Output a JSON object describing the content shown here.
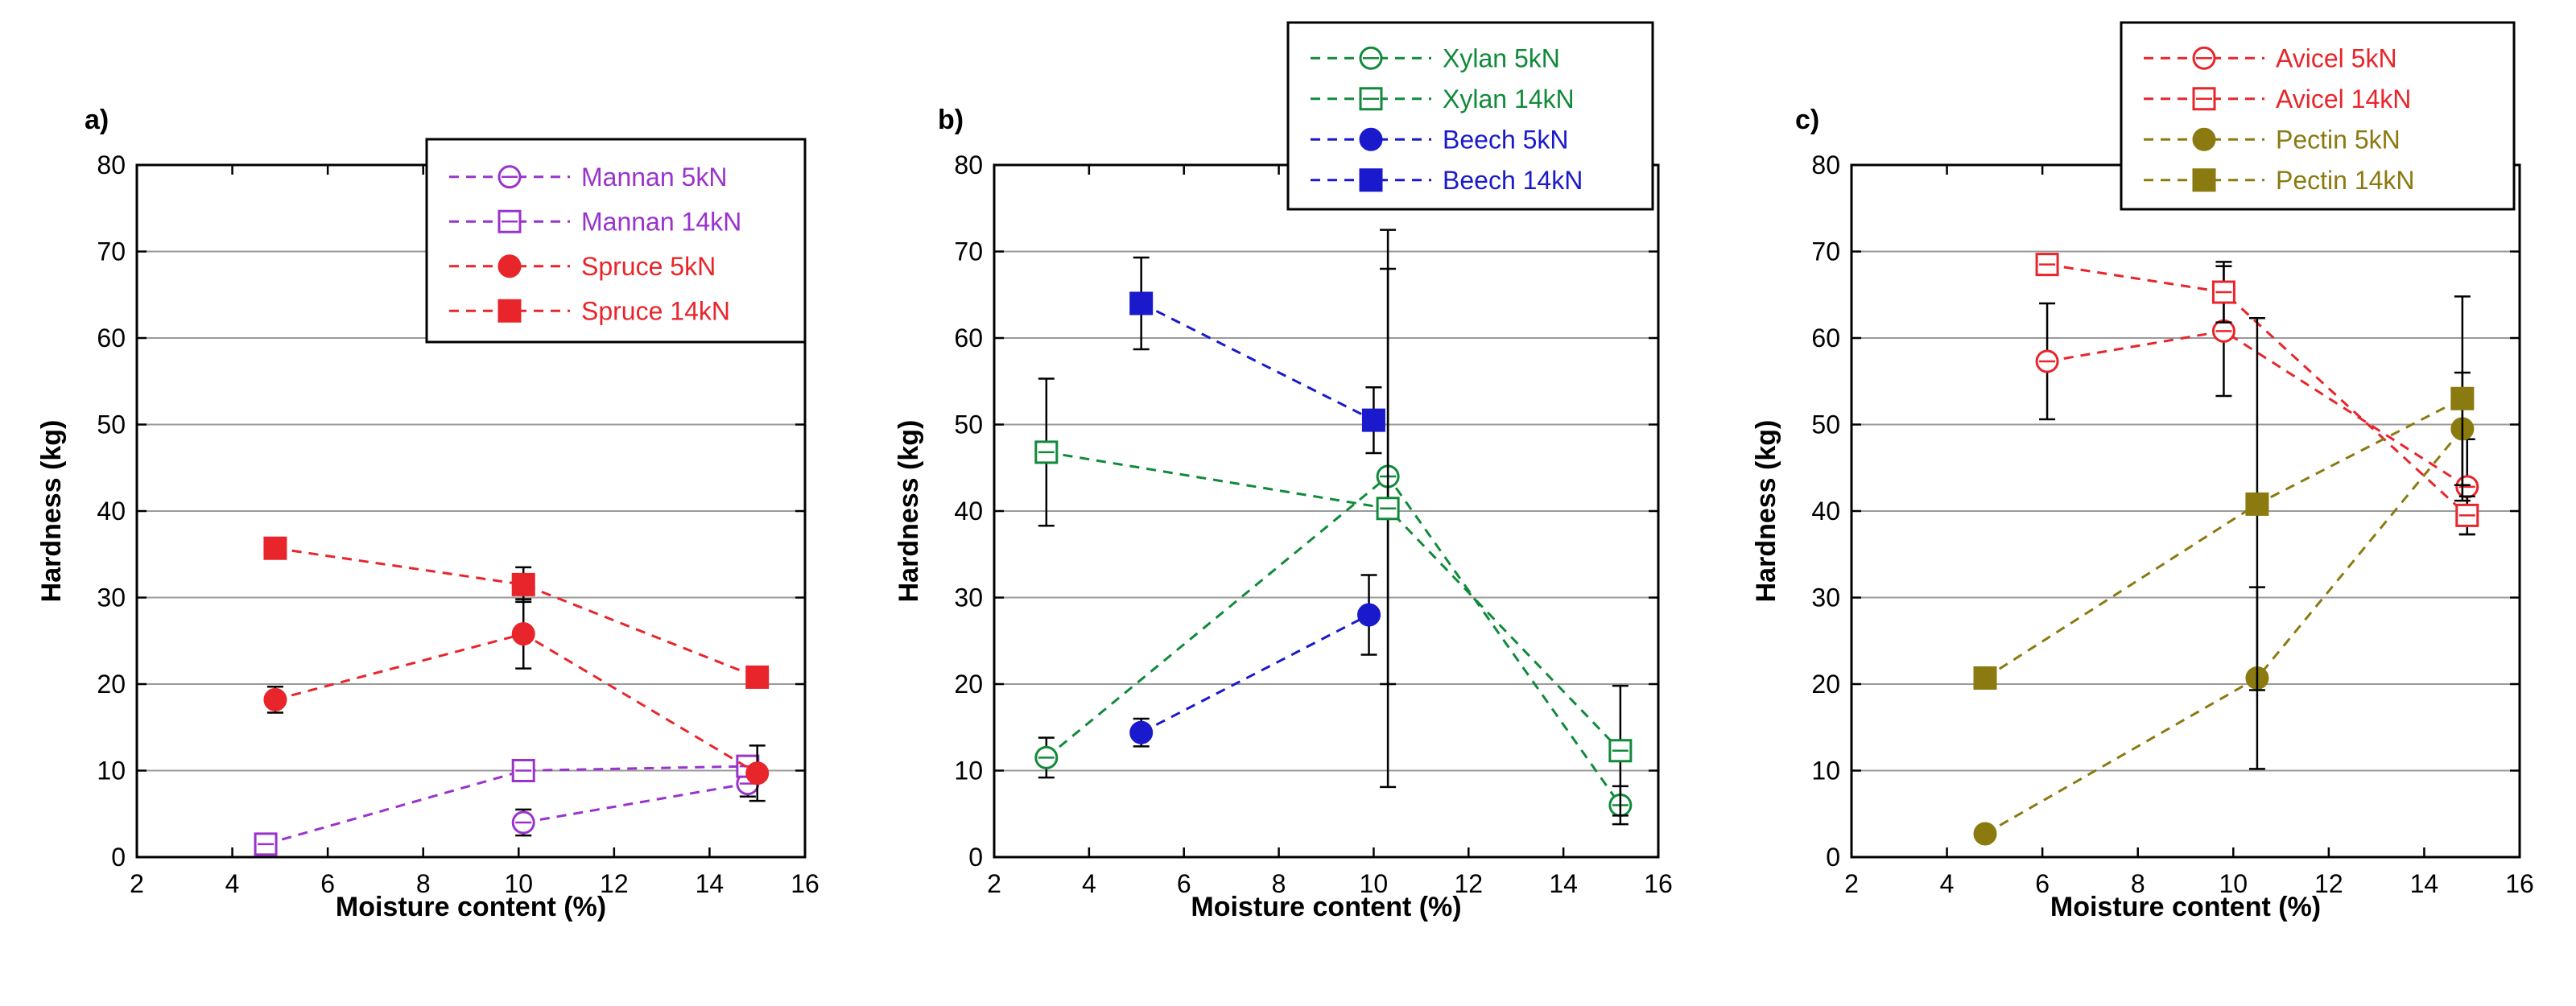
{
  "chart_data": [
    {
      "type": "line",
      "panel": "a)",
      "xlabel": "Moisture content (%)",
      "ylabel": "Hardness (kg)",
      "xlim": [
        2,
        16
      ],
      "ylim": [
        0,
        80
      ],
      "xticks": [
        2,
        4,
        6,
        8,
        10,
        12,
        14,
        16
      ],
      "yticks": [
        0,
        10,
        20,
        30,
        40,
        50,
        60,
        70,
        80
      ],
      "grid": "horizontal",
      "legend_position": "top-right",
      "series": [
        {
          "name": "Mannan 5kN",
          "color": "#9933cc",
          "marker": "circle-open",
          "points": [
            {
              "x": 10.1,
              "y": 4,
              "err": 1.5
            },
            {
              "x": 14.8,
              "y": 8.5,
              "err": 1.5
            }
          ]
        },
        {
          "name": "Mannan 14kN",
          "color": "#9933cc",
          "marker": "square-open",
          "points": [
            {
              "x": 4.7,
              "y": 1.5,
              "err": 0.8
            },
            {
              "x": 10.1,
              "y": 10,
              "err": 0.8
            },
            {
              "x": 14.8,
              "y": 10.5,
              "err": 0.8
            }
          ]
        },
        {
          "name": "Spruce 5kN",
          "color": "#e8252a",
          "marker": "circle-filled",
          "points": [
            {
              "x": 4.9,
              "y": 18.2,
              "err": 1.5
            },
            {
              "x": 10.1,
              "y": 25.8,
              "err": 4
            },
            {
              "x": 15,
              "y": 9.7,
              "err": 3.2
            }
          ]
        },
        {
          "name": "Spruce 14kN",
          "color": "#e8252a",
          "marker": "square-filled",
          "points": [
            {
              "x": 4.9,
              "y": 35.7,
              "err": 1.2
            },
            {
              "x": 10.1,
              "y": 31.5,
              "err": 2
            },
            {
              "x": 15,
              "y": 20.8,
              "err": 1.2
            }
          ]
        }
      ]
    },
    {
      "type": "line",
      "panel": "b)",
      "xlabel": "Moisture content (%)",
      "ylabel": "Hardness (kg)",
      "xlim": [
        2,
        16
      ],
      "ylim": [
        0,
        80
      ],
      "xticks": [
        2,
        4,
        6,
        8,
        10,
        12,
        14,
        16
      ],
      "yticks": [
        0,
        10,
        20,
        30,
        40,
        50,
        60,
        70,
        80
      ],
      "grid": "horizontal",
      "legend_position": "top-right",
      "series": [
        {
          "name": "Xylan 5kN",
          "color": "#108a3a",
          "marker": "circle-open",
          "points": [
            {
              "x": 3.1,
              "y": 11.5,
              "err": 2.3
            },
            {
              "x": 10.3,
              "y": 44,
              "err": 24
            },
            {
              "x": 15.2,
              "y": 6,
              "err": 2.2
            }
          ]
        },
        {
          "name": "Xylan 14kN",
          "color": "#108a3a",
          "marker": "square-open",
          "points": [
            {
              "x": 3.1,
              "y": 46.8,
              "err": 8.5
            },
            {
              "x": 10.3,
              "y": 40.3,
              "err": 32.2
            },
            {
              "x": 15.2,
              "y": 12.3,
              "err": 7.5
            }
          ]
        },
        {
          "name": "Beech 5kN",
          "color": "#1a1acc",
          "marker": "circle-filled",
          "points": [
            {
              "x": 5.1,
              "y": 14.4,
              "err": 1.6
            },
            {
              "x": 9.9,
              "y": 28,
              "err": 4.6
            }
          ]
        },
        {
          "name": "Beech 14kN",
          "color": "#1a1acc",
          "marker": "square-filled",
          "points": [
            {
              "x": 5.1,
              "y": 64,
              "err": 5.3
            },
            {
              "x": 10,
              "y": 50.5,
              "err": 3.8
            }
          ]
        }
      ]
    },
    {
      "type": "line",
      "panel": "c)",
      "xlabel": "Moisture content (%)",
      "ylabel": "Hardness (kg)",
      "xlim": [
        2,
        16
      ],
      "ylim": [
        0,
        80
      ],
      "xticks": [
        2,
        4,
        6,
        8,
        10,
        12,
        14,
        16
      ],
      "yticks": [
        0,
        10,
        20,
        30,
        40,
        50,
        60,
        70,
        80
      ],
      "grid": "horizontal",
      "legend_position": "top-right",
      "series": [
        {
          "name": "Avicel 5kN",
          "color": "#e8252a",
          "marker": "circle-open",
          "points": [
            {
              "x": 6.1,
              "y": 57.3,
              "err": 6.7
            },
            {
              "x": 9.8,
              "y": 60.8,
              "err": 7.5
            },
            {
              "x": 14.9,
              "y": 42.8,
              "err": 5.5
            }
          ]
        },
        {
          "name": "Avicel 14kN",
          "color": "#e8252a",
          "marker": "square-open",
          "points": [
            {
              "x": 6.1,
              "y": 68.5,
              "err": 0.8
            },
            {
              "x": 9.8,
              "y": 65.3,
              "err": 3.5
            },
            {
              "x": 14.9,
              "y": 39.5,
              "err": 2.2
            }
          ]
        },
        {
          "name": "Pectin 5kN",
          "color": "#8a7a10",
          "marker": "circle-filled",
          "points": [
            {
              "x": 4.8,
              "y": 2.7,
              "err": 0.4
            },
            {
              "x": 10.5,
              "y": 20.7,
              "err": 10.5
            },
            {
              "x": 14.8,
              "y": 49.5,
              "err": 6.5
            }
          ]
        },
        {
          "name": "Pectin 14kN",
          "color": "#8a7a10",
          "marker": "square-filled",
          "points": [
            {
              "x": 4.8,
              "y": 20.7,
              "err": 0.6
            },
            {
              "x": 10.5,
              "y": 40.8,
              "err": 21.5
            },
            {
              "x": 14.8,
              "y": 53,
              "err": 11.8
            }
          ]
        }
      ]
    }
  ]
}
